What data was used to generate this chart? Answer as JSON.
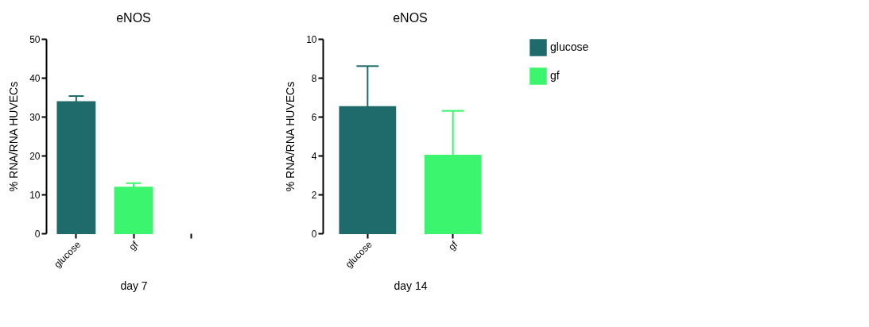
{
  "chart_data": [
    {
      "type": "bar",
      "title": "eNOS",
      "xlabel": "day 7",
      "ylabel": "% RNA/RNA HUVECs",
      "categories": [
        "glucose",
        "gf",
        null
      ],
      "values": [
        33.8,
        11.8,
        null
      ],
      "colors": [
        "#1f6b6b",
        "#3cf56e",
        null
      ],
      "errors": [
        [
          33.8,
          35.3
        ],
        [
          11.8,
          12.9
        ],
        null
      ],
      "ylim": [
        0,
        50
      ],
      "yticks": [
        0,
        10,
        20,
        30,
        40,
        50
      ]
    },
    {
      "type": "bar",
      "title": "eNOS",
      "xlabel": "day 14",
      "ylabel": "% RNA/RNA HUVECs",
      "categories": [
        "glucose",
        "gf"
      ],
      "series": [
        {
          "name": "glucose",
          "color": "#1f6b6b",
          "values": [
            6.5,
            null
          ],
          "errors": [
            [
              6.5,
              8.6
            ],
            null
          ]
        },
        {
          "name": "gf",
          "color": "#3cf56e",
          "values": [
            null,
            4.0
          ],
          "errors": [
            null,
            [
              4.0,
              6.3
            ]
          ]
        }
      ],
      "ylim": [
        0,
        10
      ],
      "yticks": [
        0,
        2,
        4,
        6,
        8,
        10
      ],
      "legend": "right"
    }
  ]
}
